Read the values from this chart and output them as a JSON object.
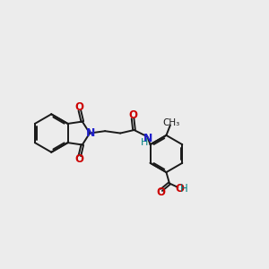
{
  "bg_color": "#ececec",
  "bond_color": "#1a1a1a",
  "N_color": "#2020cc",
  "O_color": "#cc0000",
  "OH_color": "#008080",
  "lw": 1.4,
  "dbo": 0.055,
  "xlim": [
    0.0,
    10.0
  ],
  "ylim": [
    2.0,
    8.0
  ]
}
